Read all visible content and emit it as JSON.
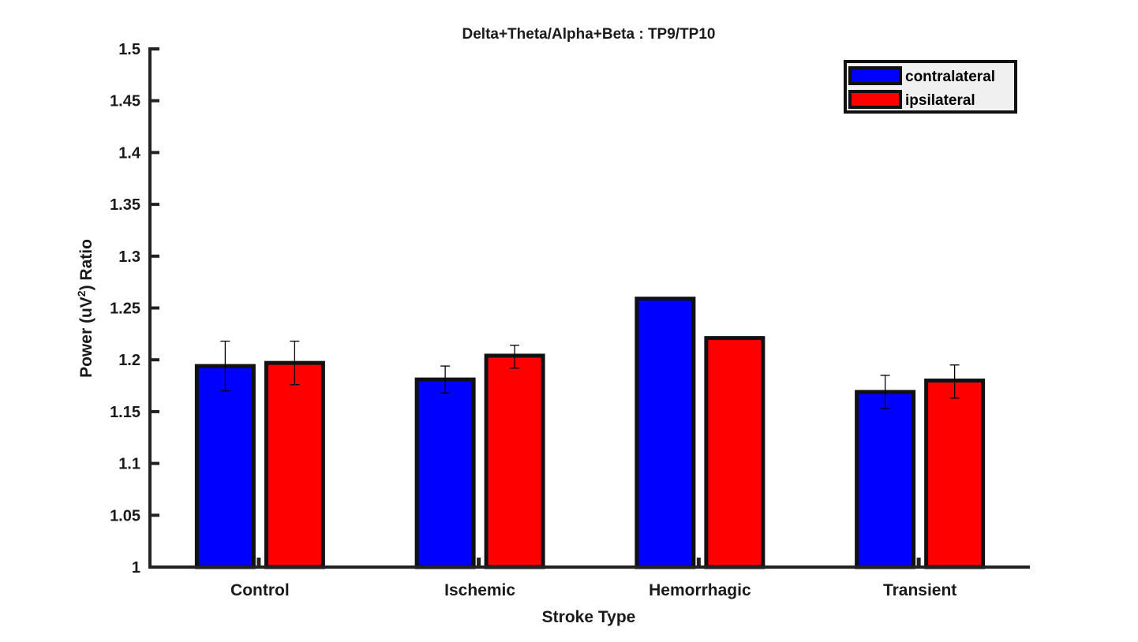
{
  "chart_data": {
    "type": "bar",
    "title": "Delta+Theta/Alpha+Beta :  TP9/TP10",
    "xlabel": "Stroke Type",
    "ylabel": "Power (uV",
    "ylabel_superscript": "2",
    "ylabel_suffix": ") Ratio",
    "ylim": [
      1,
      1.5
    ],
    "yticks": [
      1,
      1.05,
      1.1,
      1.15,
      1.2,
      1.25,
      1.3,
      1.35,
      1.4,
      1.45,
      1.5
    ],
    "ytick_labels": [
      "1",
      "1.05",
      "1.1",
      "1.15",
      "1.2",
      "1.25",
      "1.3",
      "1.35",
      "1.4",
      "1.45",
      "1.5"
    ],
    "categories": [
      "Control",
      "Ischemic",
      "Hemorrhagic",
      "Transient"
    ],
    "series": [
      {
        "name": "contralateral",
        "color": "#0000ff",
        "values": [
          1.194,
          1.181,
          1.259,
          1.169
        ],
        "error_low": [
          1.17,
          1.168,
          null,
          1.153
        ],
        "error_high": [
          1.218,
          1.194,
          null,
          1.185
        ]
      },
      {
        "name": "ipsilateral",
        "color": "#ff0000",
        "values": [
          1.197,
          1.204,
          1.221,
          1.18
        ],
        "error_low": [
          1.176,
          1.192,
          null,
          1.163
        ],
        "error_high": [
          1.218,
          1.214,
          null,
          1.195
        ]
      }
    ],
    "legend_position": "top-right",
    "grid": false
  }
}
